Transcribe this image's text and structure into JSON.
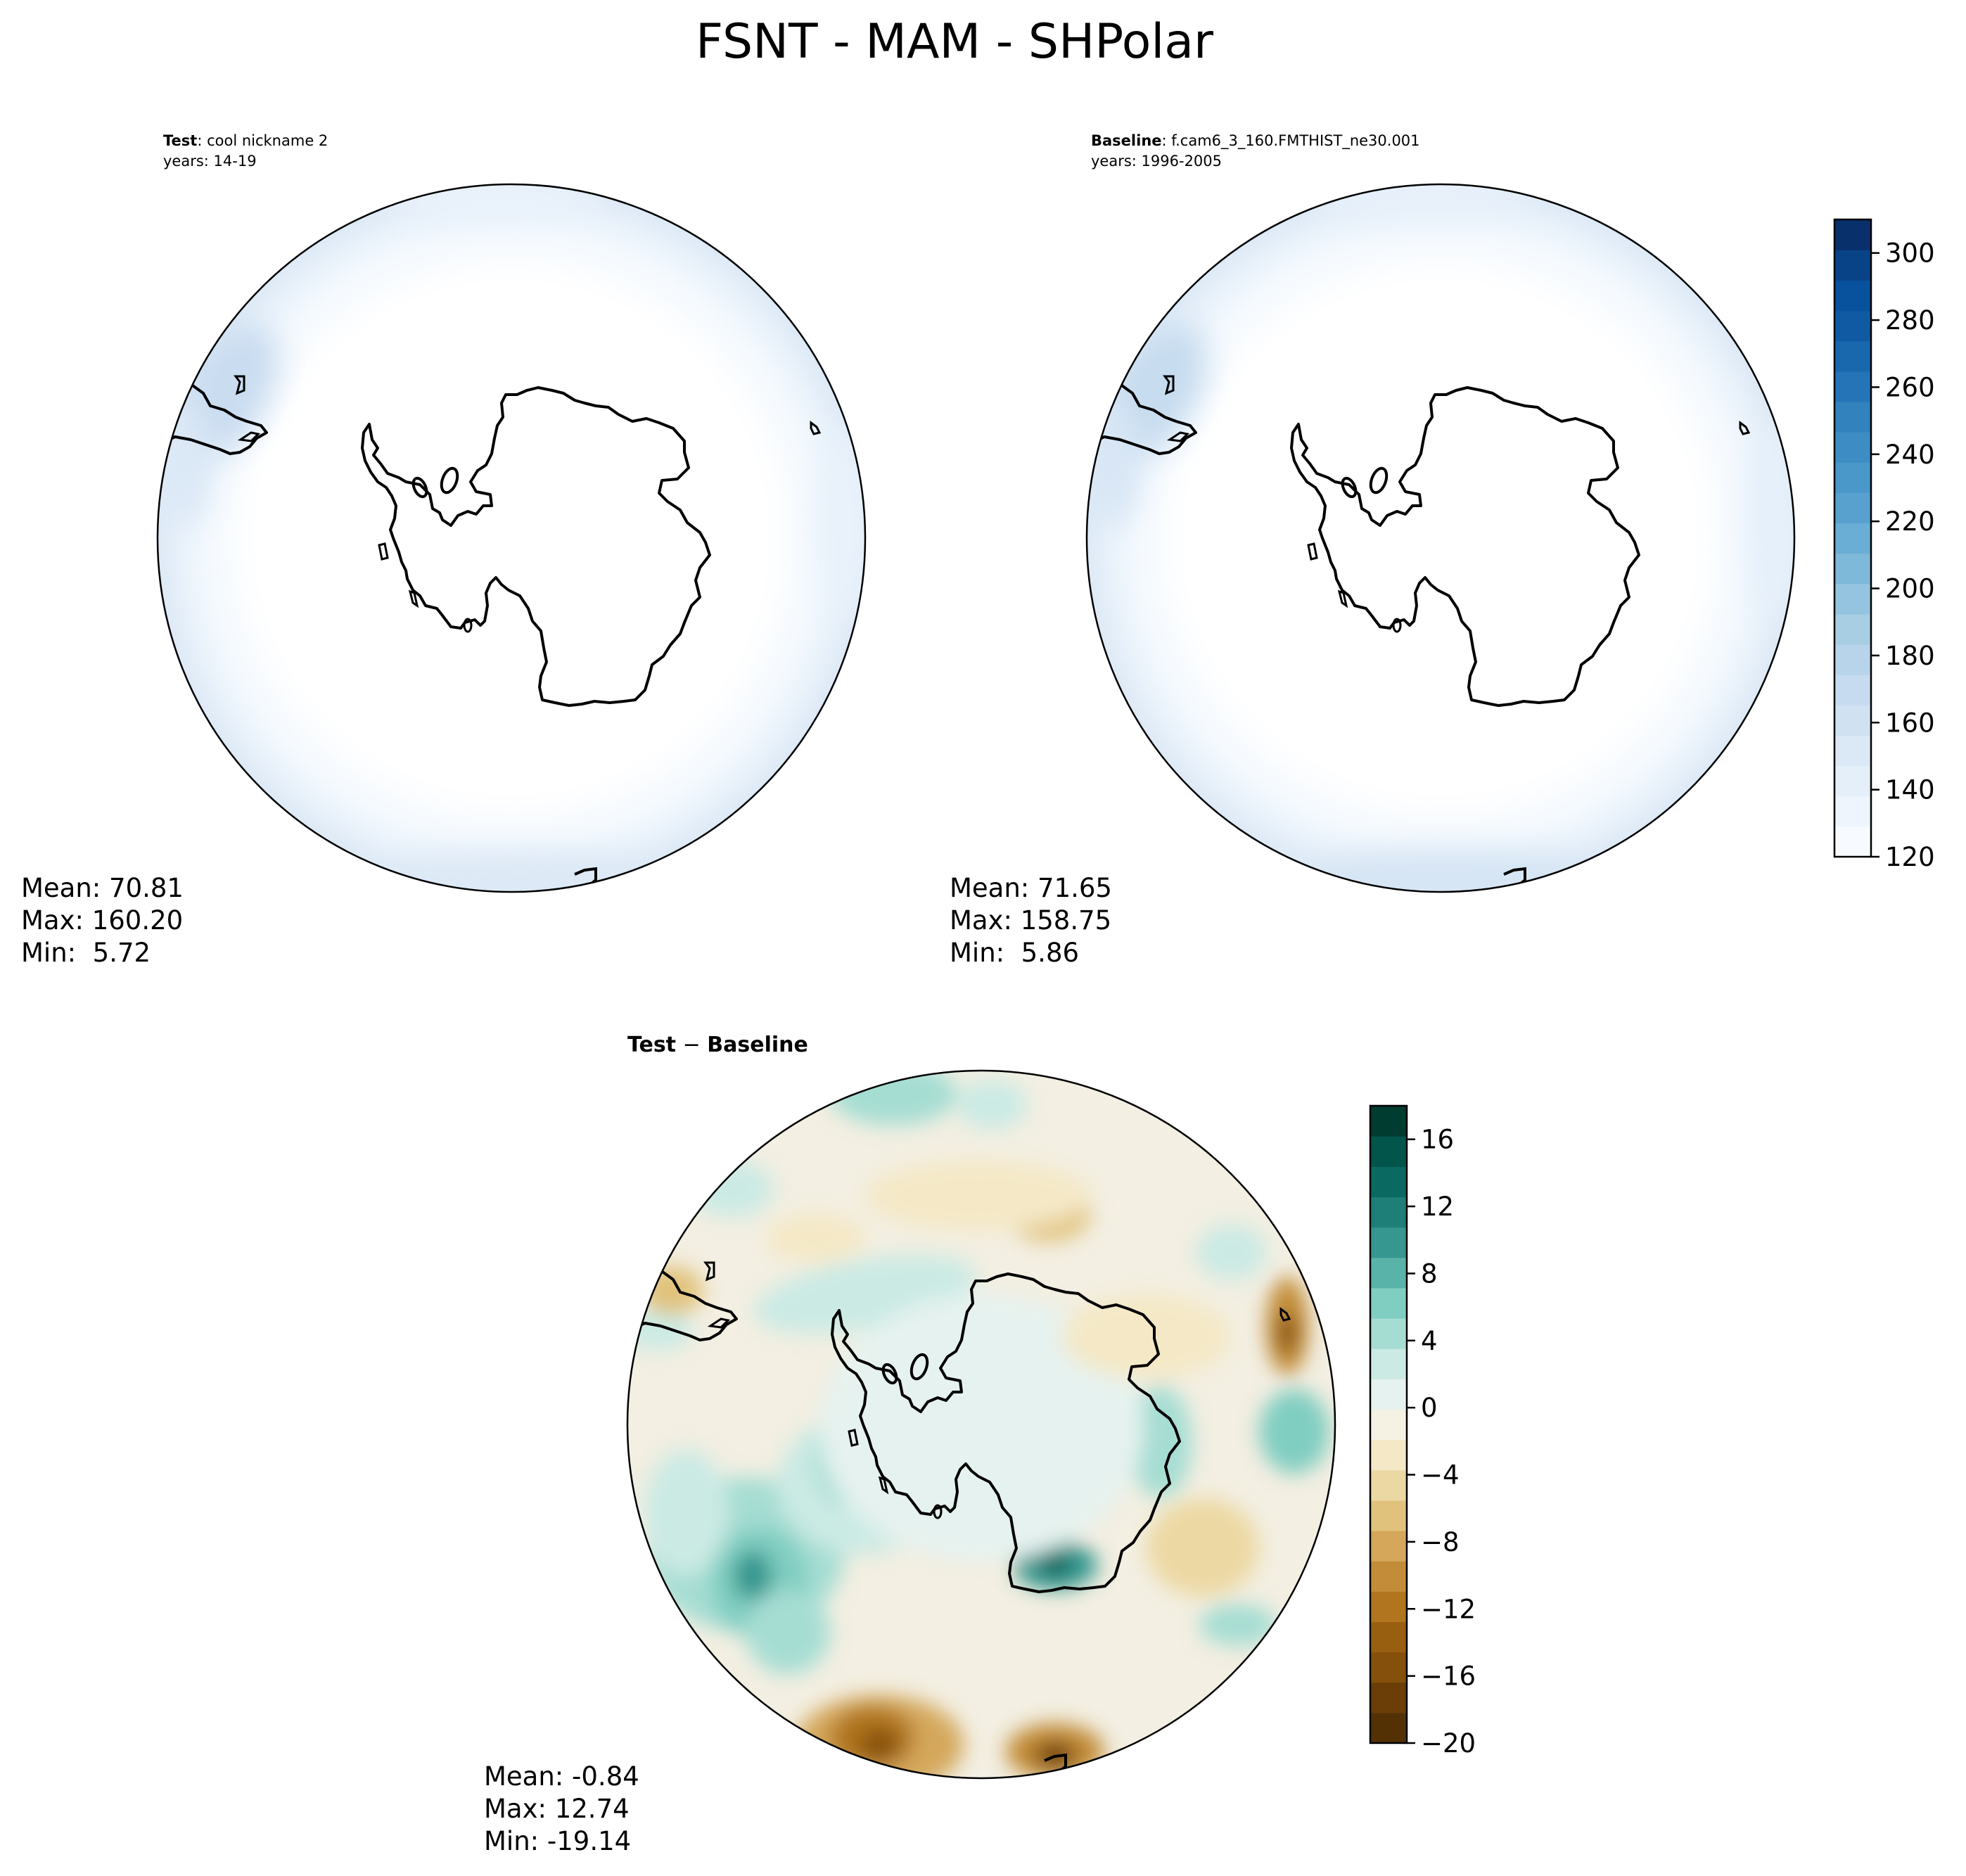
{
  "figure": {
    "title": "FSNT - MAM - SHPolar"
  },
  "chart_data": [
    {
      "type": "heatmap",
      "panel": "test",
      "label_bold": "Test",
      "label_rest": ": cool nickname 2",
      "years": "years: 14-19",
      "stats": {
        "mean": "Mean: 70.81",
        "max": "Max: 160.20",
        "min": "Min:  5.72"
      },
      "projection": "south-polar-stereographic",
      "colormap": "Blues",
      "field_note": "values mostly below 120 except near the outer rim"
    },
    {
      "type": "heatmap",
      "panel": "baseline",
      "label_bold": "Baseline",
      "label_rest": ": f.cam6_3_160.FMTHIST_ne30.001",
      "years": "years: 1996-2005",
      "stats": {
        "mean": "Mean: 71.65",
        "max": "Max: 158.75",
        "min": "Min:  5.86"
      },
      "projection": "south-polar-stereographic",
      "colormap": "Blues",
      "colorbar": {
        "min": 120,
        "max": 310,
        "step": 10,
        "ticks": [
          120,
          140,
          160,
          180,
          200,
          220,
          240,
          260,
          280,
          300
        ],
        "tick_labels": [
          "120",
          "140",
          "160",
          "180",
          "200",
          "220",
          "240",
          "260",
          "280",
          "300"
        ],
        "colors": [
          "#f7fbff",
          "#eef5fc",
          "#e4eff9",
          "#dbe9f6",
          "#d0e1f2",
          "#c6dbef",
          "#b7d4ea",
          "#a8cee4",
          "#94c4df",
          "#7fb9da",
          "#6aaed6",
          "#58a1cf",
          "#4a98c9",
          "#3d8dc4",
          "#3282be",
          "#2474b7",
          "#1967ad",
          "#0f5aa3",
          "#08519c",
          "#084387",
          "#08306b"
        ]
      }
    },
    {
      "type": "heatmap",
      "panel": "difference",
      "label_a": "Test",
      "label_op": " − ",
      "label_b": "Baseline",
      "stats": {
        "mean": "Mean: -0.84",
        "max": "Max: 12.74",
        "min": "Min: -19.14"
      },
      "projection": "south-polar-stereographic",
      "colormap": "BrBG",
      "colorbar": {
        "min": -20,
        "max": 18,
        "step": 2,
        "ticks": [
          -20,
          -16,
          -12,
          -8,
          -4,
          0,
          4,
          8,
          12,
          16
        ],
        "tick_labels": [
          "−20",
          "−16",
          "−12",
          "−8",
          "−4",
          "0",
          "4",
          "8",
          "12",
          "16"
        ],
        "colors": [
          "#543005",
          "#6b3d07",
          "#84500b",
          "#995f11",
          "#b0751e",
          "#c38c39",
          "#d4a75b",
          "#e1c27c",
          "#ecd8a3",
          "#f4e8c6",
          "#f5f1e3",
          "#e6f2ef",
          "#cbeae4",
          "#a6ddd3",
          "#80cdc1",
          "#5ab3a8",
          "#35978f",
          "#1d7f77",
          "#0a6a61",
          "#01554b",
          "#003c30"
        ]
      }
    }
  ]
}
